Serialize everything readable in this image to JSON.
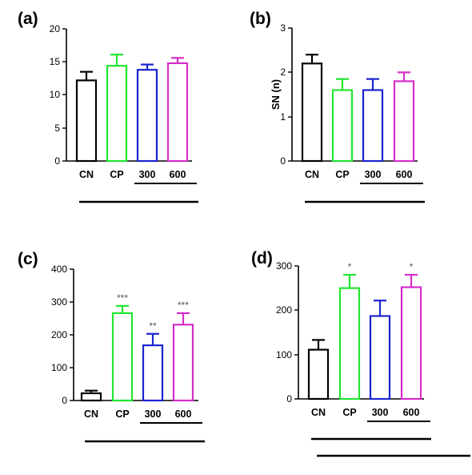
{
  "colors": {
    "CN": "#000000",
    "CP": "#22e62f",
    "300": "#1c24d0",
    "600": "#d52ec8",
    "axis": "#000000",
    "sig": "#555555"
  },
  "chart_data": [
    {
      "type": "bar",
      "panel": "(a)",
      "categories": [
        "CN",
        "CP",
        "300",
        "600"
      ],
      "values": [
        12.2,
        14.4,
        13.8,
        14.8
      ],
      "errors": [
        1.3,
        1.7,
        0.8,
        0.8
      ],
      "significance": [
        "",
        "",
        "",
        ""
      ],
      "ylabel": "",
      "ylim": [
        0,
        20
      ],
      "yticks": [
        0,
        5,
        10,
        15,
        20
      ],
      "ytick_labels": [
        "0",
        "5",
        "10",
        "15",
        "20"
      ],
      "grid": false,
      "legend": "none"
    },
    {
      "type": "bar",
      "panel": "(b)",
      "categories": [
        "CN",
        "CP",
        "300",
        "600"
      ],
      "values": [
        2.2,
        1.6,
        1.6,
        1.8
      ],
      "errors": [
        0.2,
        0.25,
        0.25,
        0.2
      ],
      "significance": [
        "",
        "",
        "",
        ""
      ],
      "ylabel": "SN (n)",
      "ylim": [
        0,
        3
      ],
      "yticks": [
        0,
        1,
        2,
        3
      ],
      "ytick_labels": [
        "0",
        "1",
        "2",
        "3"
      ],
      "grid": false,
      "legend": "none"
    },
    {
      "type": "bar",
      "panel": "(c)",
      "categories": [
        "CN",
        "CP",
        "300",
        "600"
      ],
      "values": [
        22,
        266,
        168,
        231
      ],
      "errors": [
        8,
        22,
        35,
        35
      ],
      "significance": [
        "",
        "***",
        "**",
        "***"
      ],
      "ylabel": "",
      "ylim": [
        0,
        400
      ],
      "yticks": [
        0,
        100,
        200,
        300,
        400
      ],
      "ytick_labels": [
        "0",
        "100",
        "200",
        "300",
        "400"
      ],
      "grid": false,
      "legend": "none"
    },
    {
      "type": "bar",
      "panel": "(d)",
      "categories": [
        "CN",
        "CP",
        "300",
        "600"
      ],
      "values": [
        111,
        250,
        187,
        252
      ],
      "errors": [
        22,
        30,
        35,
        28
      ],
      "significance": [
        "",
        "*",
        "",
        "*"
      ],
      "ylabel": "",
      "ylim": [
        0,
        300
      ],
      "yticks": [
        0,
        100,
        200,
        300
      ],
      "ytick_labels": [
        "0",
        "100",
        "200",
        "300"
      ],
      "grid": false,
      "legend": "none"
    }
  ]
}
